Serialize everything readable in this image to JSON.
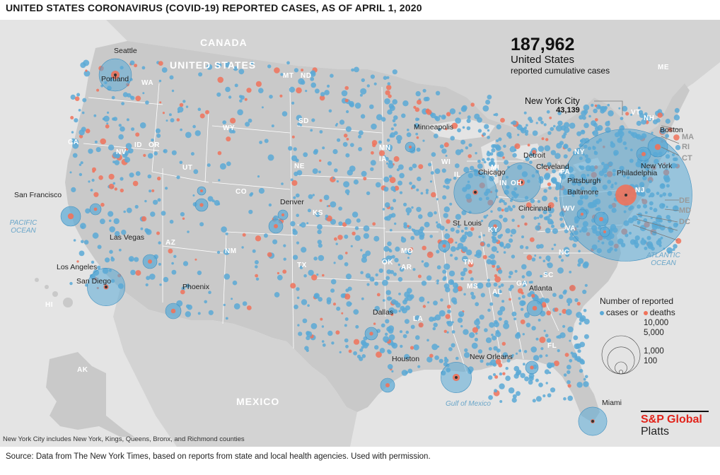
{
  "title": "UNITED STATES CORONAVIRUS (COVID-19) REPORTED CASES, AS OF APRIL 1, 2020",
  "total": {
    "number": "187,962",
    "country": "United States",
    "caption": "reported cumulative cases"
  },
  "callout": {
    "city": "New York City",
    "count": "43,139"
  },
  "legend": {
    "title": "Number of reported",
    "cases_label": "cases or",
    "deaths_label": "deaths",
    "sizes": [
      {
        "label": "10,000",
        "value": 10000
      },
      {
        "label": "5,000",
        "value": 5000
      },
      {
        "label": "1,000",
        "value": 1000
      },
      {
        "label": "100",
        "value": 100
      }
    ]
  },
  "colors": {
    "cases": "#5aa9d6",
    "deaths": "#f0725a",
    "land": "#c9c9c9",
    "background": "#e4e4e4",
    "brand": "#e2231a"
  },
  "brand": {
    "name": "S&P Global",
    "sub": "Platts"
  },
  "footnote": "New York City includes New York, Kings, Queens, Bronx, and Richmond counties",
  "source": "Source: Data from The New York Times, based on reports from state and local health agencies. Used with permission.",
  "regions": {
    "canada": "CANADA",
    "us": "UNITED STATES",
    "mexico": "MEXICO"
  },
  "oceans": {
    "pacific": "PACIFIC OCEAN",
    "atlantic": "ATLANTIC OCEAN",
    "gulf": "Gulf of Mexico"
  },
  "cities": [
    "Seattle",
    "Portland",
    "San Francisco",
    "Las Vegas",
    "Los Angeles",
    "San Diego",
    "Phoenix",
    "Denver",
    "Minneapolis",
    "Chicago",
    "Detroit",
    "Cleveland",
    "Pittsburgh",
    "Cincinnati",
    "St. Louis",
    "Dallas",
    "Houston",
    "New Orleans",
    "Atlanta",
    "Miami",
    "Boston",
    "New York",
    "Philadelphia",
    "Baltimore"
  ],
  "states": [
    "WA",
    "OR",
    "CA",
    "NV",
    "ID",
    "MT",
    "WY",
    "UT",
    "AZ",
    "CO",
    "NM",
    "ND",
    "SD",
    "NE",
    "KS",
    "OK",
    "TX",
    "MN",
    "IA",
    "MO",
    "AR",
    "LA",
    "WI",
    "IL",
    "MI",
    "IN",
    "OH",
    "KY",
    "TN",
    "MS",
    "AL",
    "GA",
    "FL",
    "SC",
    "NC",
    "VA",
    "WV",
    "PA",
    "NY",
    "VT",
    "NH",
    "ME",
    "NJ",
    "AK",
    "HI"
  ],
  "edge_states": [
    "MA",
    "RI",
    "CT",
    "DE",
    "MD",
    "DC"
  ],
  "hotspots": [
    {
      "city": "New York City",
      "cases": 43139,
      "deaths": 1096
    },
    {
      "city": "Seattle",
      "cases": 2600,
      "deaths": 180
    },
    {
      "city": "Chicago",
      "cases": 4500,
      "deaths": 70
    },
    {
      "city": "Detroit",
      "cases": 3700,
      "deaths": 120
    },
    {
      "city": "Los Angeles",
      "cases": 3500,
      "deaths": 65
    },
    {
      "city": "New Orleans",
      "cases": 2300,
      "deaths": 130
    },
    {
      "city": "Miami",
      "cases": 2000,
      "deaths": 20
    }
  ]
}
